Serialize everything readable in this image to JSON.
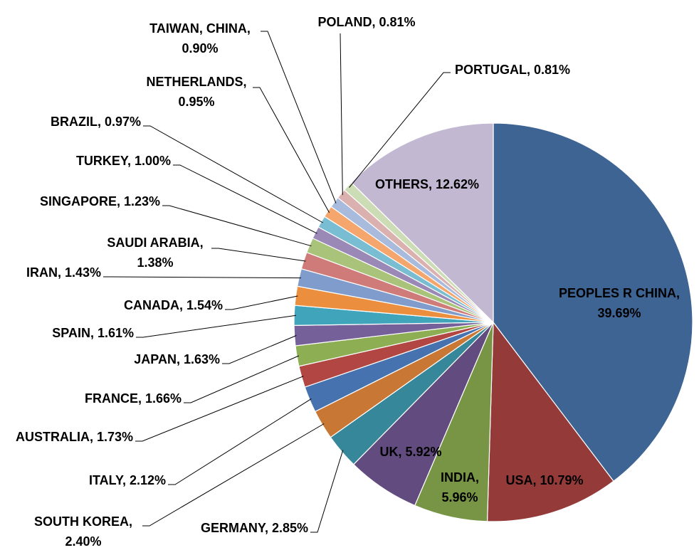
{
  "chart_data": {
    "type": "pie",
    "title": "",
    "start": "12 o'clock",
    "direction": "clockwise",
    "slices": [
      {
        "label": "PEOPLES R CHINA",
        "value": 39.69,
        "text": [
          "PEOPLES R CHINA,",
          "39.69%"
        ],
        "color": "#3E6494"
      },
      {
        "label": "USA",
        "value": 10.79,
        "text": [
          "USA, 10.79%"
        ],
        "color": "#943B3A"
      },
      {
        "label": "INDIA",
        "value": 5.96,
        "text": [
          "INDIA,",
          "5.96%"
        ],
        "color": "#789545"
      },
      {
        "label": "UK",
        "value": 5.92,
        "text": [
          "UK, 5.92%"
        ],
        "color": "#624B7E"
      },
      {
        "label": "GERMANY",
        "value": 2.85,
        "text": [
          "GERMANY, 2.85%"
        ],
        "color": "#368799"
      },
      {
        "label": "SOUTH KOREA",
        "value": 2.4,
        "text": [
          "SOUTH KOREA,",
          "2.40%"
        ],
        "color": "#C87735"
      },
      {
        "label": "ITALY",
        "value": 2.12,
        "text": [
          "ITALY, 2.12%"
        ],
        "color": "#4673AF"
      },
      {
        "label": "AUSTRALIA",
        "value": 1.73,
        "text": [
          "AUSTRALIA, 1.73%"
        ],
        "color": "#B24643"
      },
      {
        "label": "FRANCE",
        "value": 1.66,
        "text": [
          "FRANCE, 1.66%"
        ],
        "color": "#8DAE53"
      },
      {
        "label": "JAPAN",
        "value": 1.63,
        "text": [
          "JAPAN, 1.63%"
        ],
        "color": "#76609A"
      },
      {
        "label": "SPAIN",
        "value": 1.61,
        "text": [
          "SPAIN, 1.61%"
        ],
        "color": "#40A4BB"
      },
      {
        "label": "CANADA",
        "value": 1.54,
        "text": [
          "CANADA, 1.54%"
        ],
        "color": "#EB8E3D"
      },
      {
        "label": "IRAN",
        "value": 1.43,
        "text": [
          "IRAN, 1.43%"
        ],
        "color": "#7F9CCC"
      },
      {
        "label": "SAUDI ARABIA",
        "value": 1.38,
        "text": [
          "SAUDI ARABIA,",
          "1.38%"
        ],
        "color": "#CF7B79"
      },
      {
        "label": "SINGAPORE",
        "value": 1.23,
        "text": [
          "SINGAPORE, 1.23%"
        ],
        "color": "#A9C47A"
      },
      {
        "label": "TURKEY",
        "value": 1.0,
        "text": [
          "TURKEY, 1.00%"
        ],
        "color": "#9A88B6"
      },
      {
        "label": "BRAZIL",
        "value": 0.97,
        "text": [
          "BRAZIL, 0.97%"
        ],
        "color": "#78BDD1"
      },
      {
        "label": "NETHERLANDS",
        "value": 0.95,
        "text": [
          "NETHERLANDS,",
          "0.95%"
        ],
        "color": "#F4A66D"
      },
      {
        "label": "TAIWAN, CHINA",
        "value": 0.9,
        "text": [
          "TAIWAN, CHINA,",
          "0.90%"
        ],
        "color": "#A9BBDC"
      },
      {
        "label": "POLAND",
        "value": 0.81,
        "text": [
          "POLAND, 0.81%"
        ],
        "color": "#DBB1AF"
      },
      {
        "label": "PORTUGAL",
        "value": 0.81,
        "text": [
          "PORTUGAL, 0.81%"
        ],
        "color": "#CCDDB5"
      },
      {
        "label": "OTHERS",
        "value": 12.62,
        "text": [
          "OTHERS, 12.62%"
        ],
        "color": "#C2B8D1"
      }
    ]
  }
}
